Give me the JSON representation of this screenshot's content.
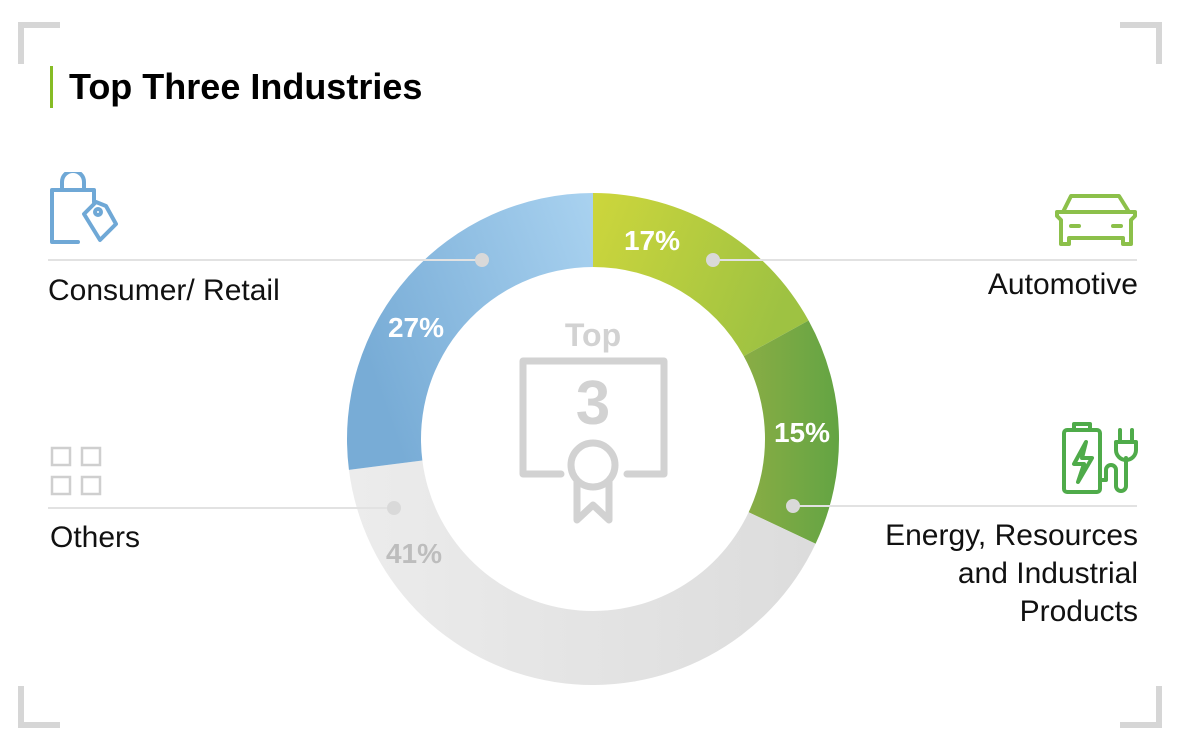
{
  "title": "Top Three Industries",
  "center": {
    "top_label": "Top",
    "number": "3"
  },
  "chart_data": {
    "type": "pie",
    "variant": "donut",
    "title": "Top Three Industries",
    "start": "top",
    "direction": "clockwise",
    "slices": [
      {
        "label": "Automotive",
        "value": 17,
        "value_label": "17%",
        "colors": [
          "#cdd63c",
          "#9ec242"
        ],
        "label_color": "#ffffff"
      },
      {
        "label": "Energy, Resources and Industrial Products",
        "value": 15,
        "value_label": "15%",
        "colors": [
          "#8aad45",
          "#63a443"
        ],
        "label_color": "#ffffff"
      },
      {
        "label": "Others",
        "value": 41,
        "value_label": "41%",
        "colors": [
          "#dcdcdc",
          "#ececec"
        ],
        "label_color": "#bdbdbd"
      },
      {
        "label": "Consumer/ Retail",
        "value": 27,
        "value_label": "27%",
        "colors": [
          "#78acd6",
          "#a9d2f0"
        ],
        "label_color": "#ffffff"
      }
    ]
  },
  "categories": {
    "consumer": {
      "label": "Consumer/ Retail",
      "icon": "shopping-bag-icon",
      "color": "#6fa8d6"
    },
    "automotive": {
      "label": "Automotive",
      "icon": "car-icon",
      "color": "#8cc04a"
    },
    "others": {
      "label": "Others",
      "icon": "grid-icon",
      "color": "#cfcfcf"
    },
    "energy": {
      "label_lines": [
        "Energy, Resources",
        "and Industrial",
        "Products"
      ],
      "icon": "battery-plug-icon",
      "color": "#4fab4a"
    }
  }
}
